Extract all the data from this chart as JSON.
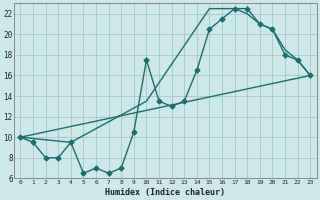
{
  "xlabel": "Humidex (Indice chaleur)",
  "background_color": "#cce8e8",
  "grid_color": "#aacccc",
  "line_color": "#1a6e6e",
  "xlim": [
    -0.5,
    23.5
  ],
  "ylim": [
    6,
    23
  ],
  "xticks": [
    0,
    1,
    2,
    3,
    4,
    5,
    6,
    7,
    8,
    9,
    10,
    11,
    12,
    13,
    14,
    15,
    16,
    17,
    18,
    19,
    20,
    21,
    22,
    23
  ],
  "yticks": [
    6,
    8,
    10,
    12,
    14,
    16,
    18,
    20,
    22
  ],
  "line1_x": [
    0,
    1,
    2,
    3,
    4,
    5,
    6,
    7,
    8,
    9,
    10,
    11,
    12,
    13,
    14,
    15,
    16,
    17,
    18,
    19,
    20,
    21,
    22,
    23
  ],
  "line1_y": [
    10,
    9.5,
    8,
    8,
    9.5,
    6.5,
    7,
    6.5,
    7,
    10.5,
    17.5,
    13.5,
    13,
    13.5,
    16.5,
    20.5,
    21.5,
    22.5,
    22.5,
    21,
    20.5,
    18,
    17.5,
    16
  ],
  "line2_x": [
    0,
    23
  ],
  "line2_y": [
    10,
    16
  ],
  "line3_x": [
    0,
    4,
    10,
    15,
    16,
    17,
    18,
    19,
    20,
    21,
    22,
    23
  ],
  "line3_y": [
    10,
    9.5,
    13.5,
    22.5,
    22.5,
    22.5,
    22,
    21,
    20.5,
    18.5,
    17.5,
    16
  ],
  "marker_size": 2.5,
  "line_width": 1.0
}
